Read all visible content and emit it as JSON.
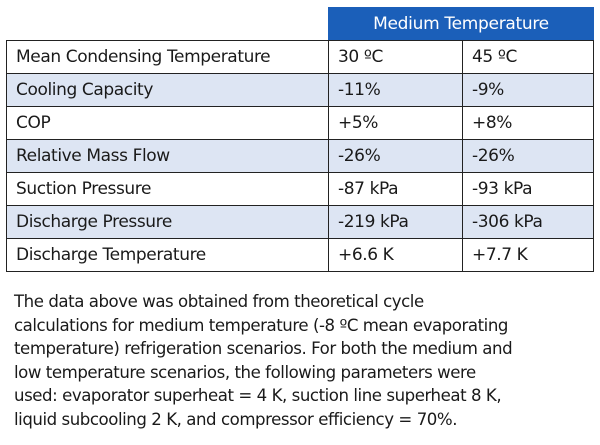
{
  "header": "Medium Temperature",
  "rows": [
    {
      "label": "Mean Condensing Temperature",
      "v1": "30 ºC",
      "v2": "45 ºC"
    },
    {
      "label": "Cooling Capacity",
      "v1": "-11%",
      "v2": "-9%"
    },
    {
      "label": "COP",
      "v1": "+5%",
      "v2": "+8%"
    },
    {
      "label": "Relative Mass Flow",
      "v1": "-26%",
      "v2": " -26%"
    },
    {
      "label": "Suction Pressure",
      "v1": " -87 kPa",
      "v2": "-93 kPa"
    },
    {
      "label": "Discharge Pressure",
      "v1": "-219 kPa",
      "v2": "-306 kPa"
    },
    {
      "label": "Discharge Temperature",
      "v1": "+6.6 K",
      "v2": "+7.7 K"
    }
  ],
  "note_lines": [
    "The data above was obtained from theoretical cycle",
    "calculations for medium temperature (-8 ºC mean evaporating",
    "temperature) refrigeration scenarios. For both the medium and",
    "low temperature scenarios, the following parameters were",
    "used: evaporator superheat = 4 K, suction line superheat 8 K,",
    "liquid subcooling 2 K, and compressor efficiency = 70%."
  ]
}
